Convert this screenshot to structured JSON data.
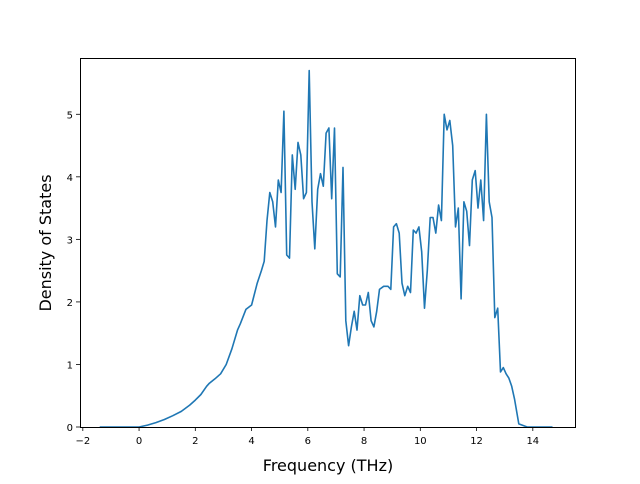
{
  "chart_data": {
    "type": "line",
    "title": "",
    "xlabel": "Frequency (THz)",
    "ylabel": "Density of States",
    "xlim": [
      -2.1,
      15.5
    ],
    "ylim": [
      0,
      5.9
    ],
    "xticks": [
      -2,
      0,
      2,
      4,
      6,
      8,
      10,
      12,
      14
    ],
    "yticks": [
      0,
      1,
      2,
      3,
      4,
      5
    ],
    "xtick_labels": [
      "−2",
      "0",
      "2",
      "4",
      "6",
      "8",
      "10",
      "12",
      "14"
    ],
    "ytick_labels": [
      "0",
      "1",
      "2",
      "3",
      "4",
      "5"
    ],
    "grid": false,
    "line_color": "#1f77b4",
    "series": [
      {
        "x": [
          -1.4,
          -1.0,
          -0.5,
          0.0,
          0.3,
          0.6,
          0.9,
          1.2,
          1.5,
          1.8,
          2.0,
          2.2,
          2.4,
          2.5,
          2.7,
          2.9,
          3.1,
          3.3,
          3.5,
          3.6,
          3.8,
          4.0,
          4.2,
          4.35,
          4.45,
          4.55,
          4.65,
          4.75,
          4.85,
          4.95,
          5.05,
          5.15,
          5.25,
          5.35,
          5.45,
          5.55,
          5.65,
          5.75,
          5.85,
          5.95,
          6.05,
          6.15,
          6.25,
          6.35,
          6.45,
          6.55,
          6.65,
          6.75,
          6.85,
          6.95,
          7.05,
          7.15,
          7.25,
          7.35,
          7.45,
          7.55,
          7.65,
          7.75,
          7.85,
          7.95,
          8.05,
          8.15,
          8.25,
          8.35,
          8.45,
          8.55,
          8.7,
          8.85,
          8.95,
          9.05,
          9.15,
          9.25,
          9.35,
          9.45,
          9.55,
          9.65,
          9.75,
          9.85,
          9.95,
          10.05,
          10.15,
          10.25,
          10.35,
          10.45,
          10.55,
          10.65,
          10.75,
          10.85,
          10.95,
          11.05,
          11.15,
          11.25,
          11.35,
          11.45,
          11.55,
          11.65,
          11.75,
          11.85,
          11.95,
          12.05,
          12.15,
          12.25,
          12.35,
          12.45,
          12.55,
          12.65,
          12.75,
          12.85,
          12.95,
          13.05,
          13.15,
          13.25,
          13.35,
          13.5,
          13.8,
          14.2,
          14.7
        ],
        "y": [
          0.0,
          0.0,
          0.0,
          0.0,
          0.03,
          0.07,
          0.12,
          0.18,
          0.25,
          0.35,
          0.43,
          0.52,
          0.65,
          0.7,
          0.77,
          0.85,
          1.0,
          1.25,
          1.55,
          1.65,
          1.88,
          1.95,
          2.3,
          2.5,
          2.65,
          3.3,
          3.75,
          3.6,
          3.2,
          3.95,
          3.75,
          5.05,
          2.75,
          2.7,
          4.35,
          3.8,
          4.55,
          4.35,
          3.65,
          3.75,
          5.7,
          3.6,
          2.85,
          3.8,
          4.05,
          3.85,
          4.7,
          4.78,
          3.65,
          4.78,
          2.45,
          2.4,
          4.15,
          1.7,
          1.3,
          1.6,
          1.85,
          1.55,
          2.1,
          1.95,
          1.95,
          2.15,
          1.7,
          1.6,
          1.85,
          2.2,
          2.25,
          2.25,
          2.2,
          3.2,
          3.25,
          3.1,
          2.3,
          2.1,
          2.25,
          2.15,
          3.15,
          3.1,
          3.2,
          2.8,
          1.9,
          2.5,
          3.35,
          3.35,
          3.1,
          3.55,
          3.3,
          5.0,
          4.75,
          4.9,
          4.5,
          3.2,
          3.5,
          2.05,
          3.6,
          3.45,
          2.9,
          3.95,
          4.1,
          3.5,
          3.95,
          3.3,
          5.0,
          3.6,
          3.35,
          1.75,
          1.9,
          0.88,
          0.95,
          0.85,
          0.78,
          0.65,
          0.45,
          0.05,
          0.0,
          0.0,
          0.0
        ]
      }
    ]
  }
}
